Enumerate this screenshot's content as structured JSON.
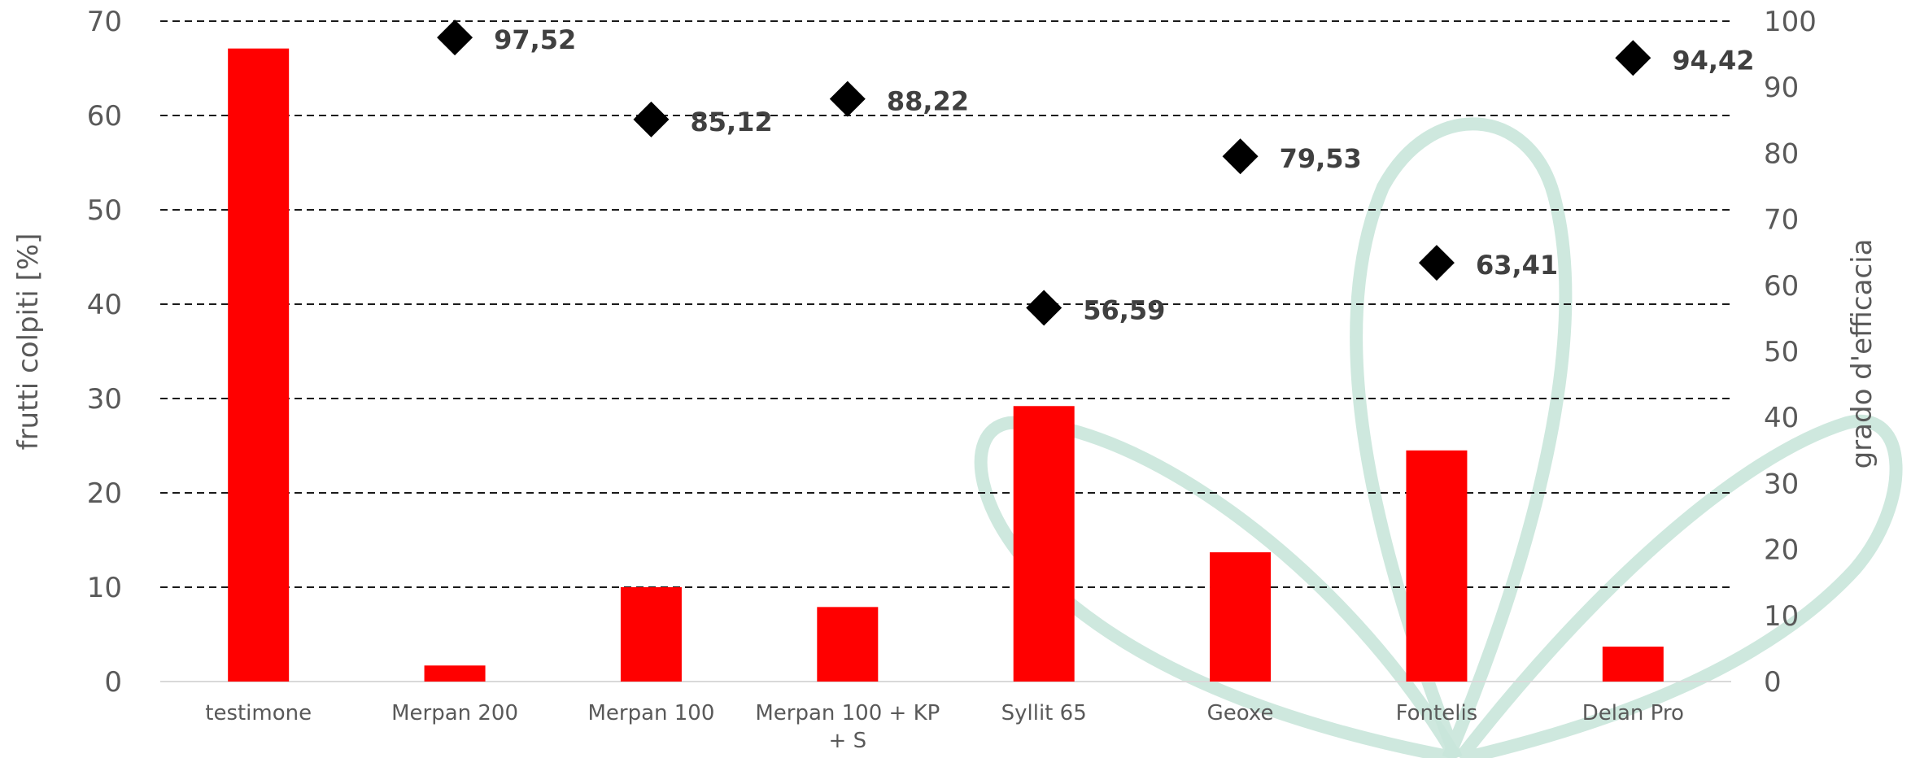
{
  "chart_data": {
    "type": "bar",
    "categories": [
      "testimone",
      "Merpan 200",
      "Merpan 100",
      "Merpan 100 + KP + S",
      "Syllit 65",
      "Geoxe",
      "Fontelis",
      "Delan Pro"
    ],
    "category_label_lines": [
      [
        "testimone"
      ],
      [
        "Merpan 200"
      ],
      [
        "Merpan 100"
      ],
      [
        "Merpan 100 + KP",
        "+ S"
      ],
      [
        "Syllit 65"
      ],
      [
        "Geoxe"
      ],
      [
        "Fontelis"
      ],
      [
        "Delan Pro"
      ]
    ],
    "series": [
      {
        "axis": "left",
        "type": "bar",
        "color": "#ff0000",
        "values": [
          67.1,
          1.7,
          10.0,
          7.9,
          29.2,
          13.7,
          24.5,
          3.7
        ]
      },
      {
        "axis": "right",
        "type": "scatter",
        "marker": "diamond",
        "color": "#000000",
        "values": [
          null,
          97.52,
          85.12,
          88.22,
          56.59,
          79.53,
          63.41,
          94.42
        ],
        "data_labels": [
          "",
          "97,52",
          "85,12",
          "88,22",
          "56,59",
          "79,53",
          "63,41",
          "94,42"
        ]
      }
    ],
    "ylabel": "frutti colpiti [%]",
    "y2label": "grado d'efficacia",
    "ylim": [
      0,
      70
    ],
    "y2lim": [
      0,
      100
    ],
    "yticks": [
      0,
      10,
      20,
      30,
      40,
      50,
      60,
      70
    ],
    "y2ticks": [
      0,
      10,
      20,
      30,
      40,
      50,
      60,
      70,
      80,
      90,
      100
    ],
    "grid": "dashed horizontal",
    "legend": "none"
  },
  "colors": {
    "bar": "#ff0000",
    "marker": "#000000",
    "gridline": "#1a1a1a",
    "tick_text": "#595959",
    "data_label": "#404040",
    "watermark": "#c9e6da"
  },
  "decoration": {
    "watermark_icon": "leaf-outline-icon"
  }
}
